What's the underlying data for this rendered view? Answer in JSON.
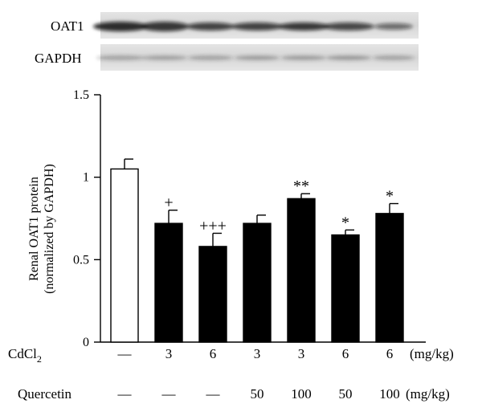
{
  "blot": {
    "rows": [
      {
        "label": "OAT1"
      },
      {
        "label": "GAPDH"
      }
    ]
  },
  "chart_data": {
    "type": "bar",
    "ylabel_line1": "Renal OAT1 protein",
    "ylabel_line2": "(normalized by GAPDH)",
    "ylim": [
      0,
      1.5
    ],
    "yticks": [
      "0",
      "0.5",
      "1",
      "1.5"
    ],
    "grid": false,
    "bars": [
      {
        "value": 1.05,
        "error": 0.06,
        "fill": "white",
        "marker": ""
      },
      {
        "value": 0.72,
        "error": 0.08,
        "fill": "black",
        "marker": "+"
      },
      {
        "value": 0.58,
        "error": 0.08,
        "fill": "black",
        "marker": "+++"
      },
      {
        "value": 0.72,
        "error": 0.05,
        "fill": "black",
        "marker": ""
      },
      {
        "value": 0.87,
        "error": 0.03,
        "fill": "black",
        "marker": "**"
      },
      {
        "value": 0.65,
        "error": 0.03,
        "fill": "black",
        "marker": "*"
      },
      {
        "value": 0.78,
        "error": 0.06,
        "fill": "black",
        "marker": "*"
      }
    ]
  },
  "conditions": [
    {
      "label": "CdCl",
      "label_sub": "2",
      "values": [
        "—",
        "3",
        "6",
        "3",
        "3",
        "6",
        "6"
      ],
      "unit": "(mg/kg)"
    },
    {
      "label": "Quercetin",
      "label_sub": "",
      "values": [
        "—",
        "—",
        "—",
        "50",
        "100",
        "50",
        "100"
      ],
      "unit": "(mg/kg)"
    }
  ]
}
